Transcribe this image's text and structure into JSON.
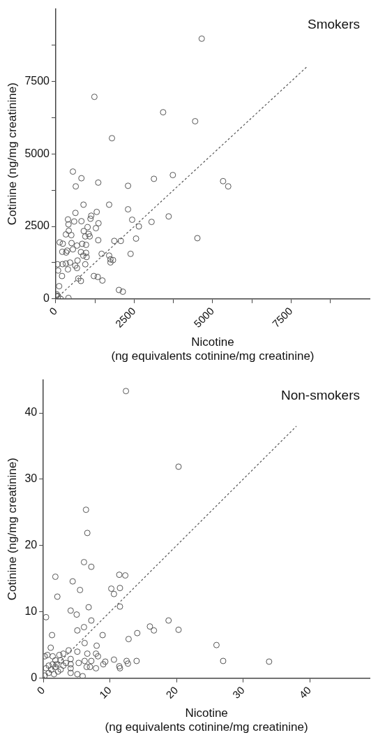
{
  "chart_data": [
    {
      "type": "scatter",
      "title": "Smokers",
      "xlabel": "Nicotine\n(ng equivalents cotinine/mg creatinine)",
      "ylabel": "Cotinine (ng/mg creatinine)",
      "xlim": [
        0,
        10000
      ],
      "ylim": [
        0,
        10000
      ],
      "xticks": [
        0,
        {
          "value": 1250,
          "label": null
        },
        2500,
        {
          "value": 3750,
          "label": null
        },
        5000,
        {
          "value": 6250,
          "label": null
        },
        7500,
        {
          "value": 8750,
          "label": null
        }
      ],
      "yticks": [
        0,
        {
          "value": 1250,
          "label": null
        },
        2500,
        {
          "value": 3750,
          "label": null
        },
        5000,
        {
          "value": 6250,
          "label": null
        },
        7500,
        {
          "value": 8750,
          "label": null
        }
      ],
      "grid": false,
      "legend": false,
      "series": [
        {
          "marker": "circle",
          "color": "#555555",
          "x": [
            4650,
            1230,
            3420,
            4440,
            1790,
            545,
            817,
            636,
            1353,
            2302,
            3127,
            3729,
            5330,
            5494,
            883,
            1700,
            627,
            388,
            586,
            817,
            1130,
            1105,
            1304,
            1361,
            1278,
            1015,
            891,
            940,
            1081,
            1047,
            404,
            413,
            322,
            495,
            2302,
            2433,
            2648,
            3052,
            3596,
            2557,
            4512,
            1353,
            1864,
            2072,
            2384,
            124,
            223,
            502,
            676,
            842,
            965,
            206,
            363,
            330,
            545,
            800,
            965,
            982,
            693,
            875,
            1460,
            1700,
            1742,
            1824,
            1742,
            940,
            619,
            676,
            454,
            322,
            215,
            57,
            74,
            388,
            198,
            107,
            718,
            800,
            1213,
            1336,
            1485,
            2012,
            2136,
            33,
            74,
            157,
            404,
            8
          ],
          "values": [
            8970,
            6965,
            6435,
            6125,
            5540,
            4390,
            4160,
            3880,
            4010,
            3900,
            4140,
            4270,
            4060,
            3880,
            3250,
            3250,
            2965,
            2740,
            2670,
            2680,
            2870,
            2765,
            3000,
            2610,
            2440,
            2475,
            2340,
            2155,
            2155,
            2240,
            2570,
            2350,
            2225,
            2200,
            3090,
            2730,
            2500,
            2655,
            2845,
            2080,
            2095,
            2025,
            2000,
            2000,
            1555,
            1950,
            1905,
            1925,
            1840,
            1900,
            1865,
            1625,
            1665,
            1600,
            1710,
            1615,
            1590,
            1445,
            1325,
            1495,
            1555,
            1495,
            1365,
            1340,
            1260,
            1195,
            1150,
            1065,
            1255,
            1220,
            1200,
            1195,
            980,
            1020,
            790,
            440,
            705,
            620,
            790,
            760,
            635,
            310,
            250,
            160,
            95,
            0,
            35,
            120
          ]
        },
        {
          "type": "line",
          "marker": "none",
          "color": "#555555",
          "line_style": "dashed",
          "x": [
            0,
            8000
          ],
          "values": [
            0,
            8000
          ]
        }
      ]
    },
    {
      "type": "scatter",
      "title": "Non-smokers",
      "xlabel": "Nicotine\n(ng equivalents cotinine/mg creatinine)",
      "ylabel": "Cotinine (ng/mg creatinine)",
      "xlim": [
        0,
        49
      ],
      "ylim": [
        0,
        45
      ],
      "xticks": [
        0,
        10,
        20,
        30,
        40
      ],
      "yticks": [
        0,
        10,
        20,
        30,
        40
      ],
      "grid": false,
      "legend": false,
      "series": [
        {
          "marker": "circle",
          "color": "#555555",
          "x": [
            12.4,
            20.3,
            6.4,
            6.6,
            6.1,
            7.2,
            1.8,
            4.4,
            5.5,
            11.4,
            12.3,
            10.2,
            10.6,
            11.5,
            2.1,
            4.1,
            5.0,
            6.8,
            11.5,
            0.4,
            7.2,
            6.1,
            5.1,
            1.3,
            8.9,
            12.8,
            14.1,
            16.0,
            16.6,
            18.8,
            20.3,
            26.0,
            27.0,
            33.9,
            6.2,
            8.0,
            8.2,
            7.9,
            6.6,
            7.2,
            6.2,
            6.5,
            7.0,
            7.9,
            9.0,
            9.3,
            10.6,
            11.4,
            11.5,
            12.5,
            12.7,
            14.0,
            5.9,
            5.3,
            5.1,
            3.8,
            3.0,
            2.4,
            1.1,
            0.6,
            1.4,
            1.8,
            2.6,
            4.1,
            4.1,
            4.1,
            4.1,
            3.4,
            0.8,
            0.4,
            1.2,
            1.8,
            2.2,
            1.6,
            0.8,
            0.2,
            2.6,
            3.0,
            2.0,
            1.4,
            0.2,
            5.1
          ],
          "values": [
            43.3,
            31.9,
            25.4,
            21.9,
            17.5,
            16.8,
            15.3,
            14.6,
            13.3,
            15.6,
            15.5,
            13.5,
            12.7,
            13.6,
            12.3,
            10.2,
            9.6,
            10.7,
            10.8,
            9.2,
            8.7,
            7.7,
            7.2,
            6.5,
            6.5,
            5.9,
            6.8,
            7.8,
            7.2,
            8.7,
            7.3,
            5.0,
            2.6,
            2.5,
            5.3,
            4.9,
            3.3,
            3.7,
            3.7,
            2.6,
            2.6,
            1.7,
            1.7,
            1.5,
            2.1,
            2.5,
            2.8,
            1.8,
            1.5,
            2.6,
            2.2,
            2.6,
            0.3,
            2.3,
            4.0,
            4.2,
            3.7,
            3.5,
            4.6,
            3.5,
            3.3,
            2.7,
            2.7,
            2.9,
            2.1,
            1.5,
            0.8,
            2.3,
            1.9,
            1.5,
            1.3,
            1.7,
            1.0,
            0.6,
            0.8,
            0.4,
            1.3,
            1.9,
            2.1,
            2.1,
            3.3,
            0.6
          ]
        },
        {
          "type": "line",
          "marker": "none",
          "color": "#555555",
          "line_style": "dashed",
          "x": [
            0,
            38
          ],
          "values": [
            0,
            38
          ]
        }
      ]
    }
  ]
}
